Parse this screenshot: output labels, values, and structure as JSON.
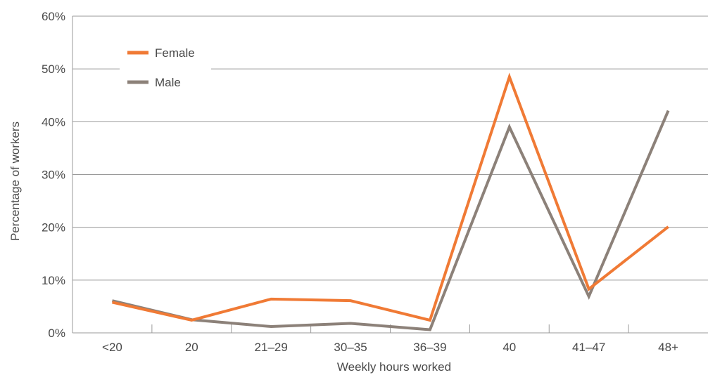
{
  "chart_data": {
    "type": "line",
    "title": "",
    "xlabel": "Weekly hours worked",
    "ylabel": "Percentage of workers",
    "categories": [
      "<20",
      "20",
      "21–29",
      "30–35",
      "36–39",
      "40",
      "41–47",
      "48+"
    ],
    "ylim": [
      0,
      60
    ],
    "yticks": [
      0,
      10,
      20,
      30,
      40,
      50,
      60
    ],
    "ytick_labels": [
      "0%",
      "10%",
      "20%",
      "30%",
      "40%",
      "50%",
      "60%"
    ],
    "grid": true,
    "legend_position": "top-left",
    "series": [
      {
        "name": "Female",
        "color": "#f07a35",
        "values": [
          5.8,
          2.4,
          6.4,
          6.1,
          2.4,
          48.5,
          8.3,
          20.1
        ]
      },
      {
        "name": "Male",
        "color": "#8c8179",
        "values": [
          6.1,
          2.5,
          1.2,
          1.8,
          0.6,
          39.0,
          6.9,
          42.1
        ]
      }
    ]
  }
}
